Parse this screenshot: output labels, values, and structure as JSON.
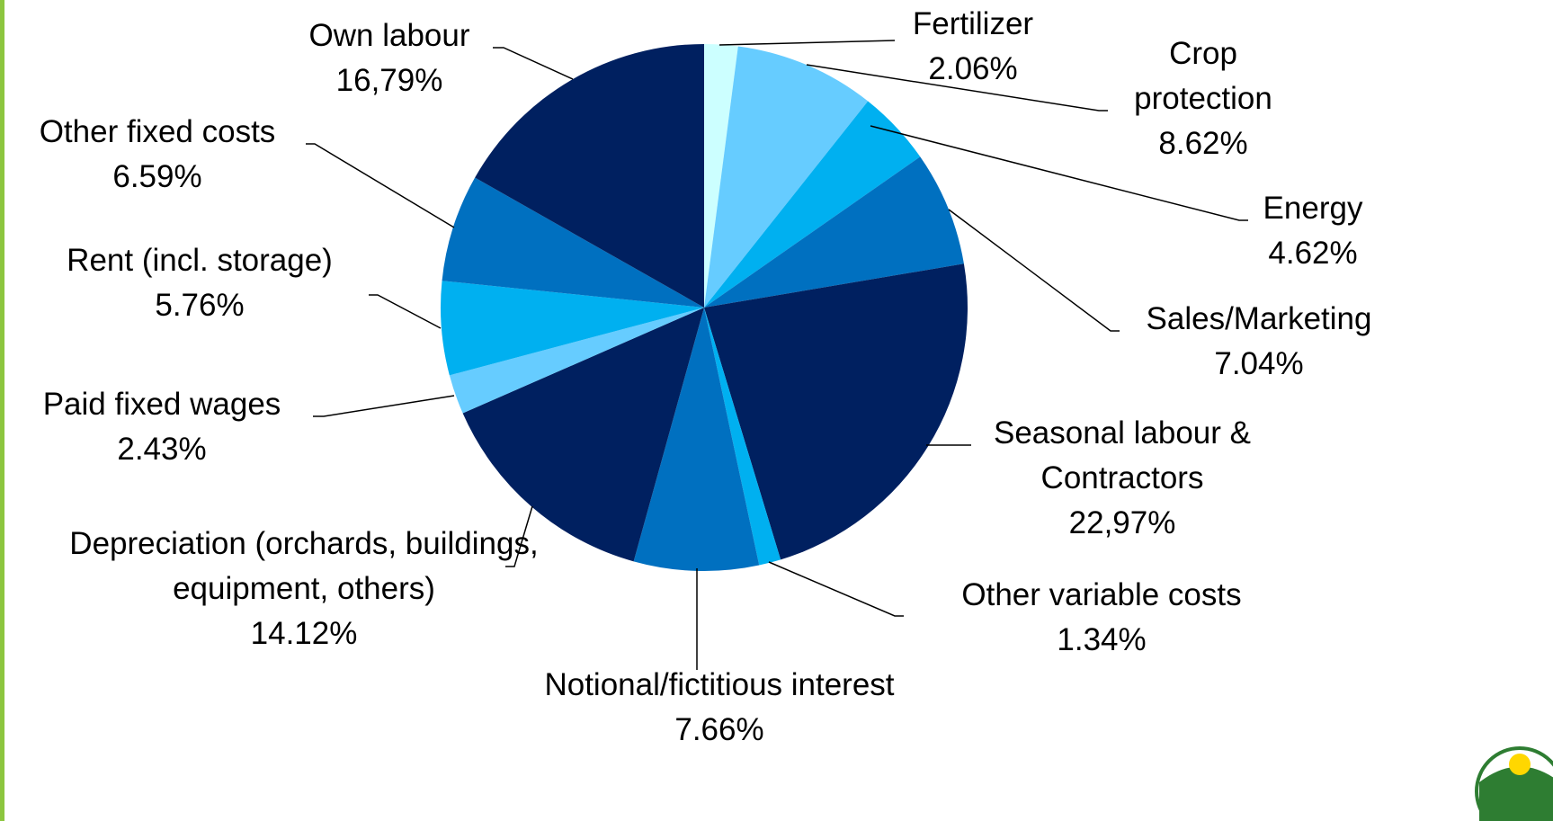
{
  "chart_data": {
    "type": "pie",
    "categories": [
      "Fertilizer",
      "Crop protection",
      "Energy",
      "Sales/Marketing",
      "Seasonal labour & Contractors",
      "Other variable costs",
      "Notional/fictitious interest",
      "Depreciation (orchards, buildings, equipment, others)",
      "Paid fixed wages",
      "Rent (incl. storage)",
      "Other fixed costs",
      "Own labour"
    ],
    "values": [
      2.06,
      8.62,
      4.62,
      7.04,
      22.97,
      1.34,
      7.66,
      14.12,
      2.43,
      5.76,
      6.59,
      16.79
    ],
    "value_labels": [
      "2.06%",
      "8.62%",
      "4.62%",
      "7.04%",
      "22,97%",
      "1.34%",
      "7.66%",
      "14.12%",
      "2.43%",
      "5.76%",
      "6.59%",
      "16,79%"
    ],
    "colors": [
      "#ccffff",
      "#66ccff",
      "#00b0f0",
      "#0070c0",
      "#002060",
      "#00b0f0",
      "#0070c0",
      "#002060",
      "#66ccff",
      "#00b0f0",
      "#0070c0",
      "#002060"
    ]
  }
}
